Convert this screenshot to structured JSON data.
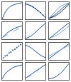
{
  "chart_data": [
    {
      "type": "line",
      "x": [
        0,
        1,
        2,
        3,
        4,
        5,
        6,
        7,
        8
      ],
      "xlim": [
        0,
        8
      ],
      "ylim": [
        0,
        10
      ],
      "tick_labels": false,
      "grid": false,
      "series": [
        {
          "color": "#1f4e9c",
          "values": [
            0,
            3.5,
            5.8,
            7.2,
            8.1,
            8.7,
            9.1,
            9.4,
            9.6
          ]
        }
      ]
    },
    {
      "type": "line",
      "x": [
        0,
        1,
        2,
        3,
        4,
        5,
        6,
        7,
        8
      ],
      "xlim": [
        0,
        8
      ],
      "ylim": [
        0,
        10
      ],
      "tick_labels": false,
      "grid": false,
      "series": [
        {
          "color": "#1f4e9c",
          "marker": "circle",
          "values": [
            9,
            8.6,
            8.0,
            7.2,
            6.2,
            5.0,
            3.8,
            2.4,
            1.0
          ]
        }
      ]
    },
    {
      "type": "line",
      "x": [
        0,
        1,
        2,
        3,
        4,
        5,
        6,
        7,
        8
      ],
      "xlim": [
        0,
        8
      ],
      "ylim": [
        0,
        10
      ],
      "tick_labels": false,
      "grid": false,
      "series": [
        {
          "color": "#1f4e9c",
          "values": [
            0.5,
            1.2,
            2.2,
            3.4,
            4.8,
            6.0,
            7.2,
            8.3,
            9.2
          ]
        },
        {
          "color": "#6fa8dc",
          "values": [
            0.5,
            2.0,
            3.8,
            5.4,
            6.8,
            7.8,
            8.6,
            9.1,
            9.5
          ]
        },
        {
          "color": "#0b2a5c",
          "values": [
            0.5,
            0.9,
            1.5,
            2.3,
            3.3,
            4.5,
            5.8,
            7.2,
            8.6
          ]
        }
      ]
    },
    {
      "type": "line",
      "x": [
        0,
        1,
        2,
        3,
        4,
        5,
        6,
        7,
        8
      ],
      "xlim": [
        0,
        8
      ],
      "ylim": [
        0,
        10
      ],
      "tick_labels": false,
      "grid": false,
      "series": [
        {
          "color": "#1f4e9c",
          "values": [
            1,
            2.5,
            3.8,
            4.9,
            5.8,
            6.5,
            7.1,
            7.6,
            8.0
          ]
        },
        {
          "color": "#6fa8dc",
          "line_style": "dashed",
          "values": [
            1,
            1.8,
            2.7,
            3.6,
            4.5,
            5.3,
            6.1,
            6.8,
            7.5
          ]
        }
      ]
    },
    {
      "type": "line",
      "x": [
        0,
        1,
        2,
        3,
        4,
        5,
        6,
        7,
        8
      ],
      "xlim": [
        0,
        8
      ],
      "ylim": [
        0,
        10
      ],
      "tick_labels": false,
      "grid": false,
      "series": [
        {
          "color": "#1f4e9c",
          "values": [
            0.5,
            1.0,
            1.8,
            2.9,
            4.2,
            5.6,
            7.0,
            8.3,
            9.5
          ]
        }
      ]
    },
    {
      "type": "line",
      "x": [
        0,
        1,
        2,
        3,
        4,
        5,
        6,
        7,
        8
      ],
      "xlim": [
        0,
        8
      ],
      "ylim": [
        0,
        10
      ],
      "tick_labels": false,
      "grid": false,
      "series": [
        {
          "color": "#1f4e9c",
          "values": [
            0.3,
            1.4,
            2.6,
            3.8,
            5.0,
            6.2,
            7.4,
            8.6,
            9.7
          ]
        },
        {
          "color": "#6fa8dc",
          "values": [
            0.3,
            0.9,
            1.6,
            2.4,
            3.3,
            4.3,
            5.4,
            6.6,
            7.9
          ]
        }
      ]
    },
    {
      "type": "scatter",
      "x": [
        0.5,
        1.2,
        2,
        2.8,
        3.5,
        4.3,
        5.1,
        5.9,
        6.6,
        7.4
      ],
      "xlim": [
        0,
        8
      ],
      "ylim": [
        0,
        10
      ],
      "tick_labels": false,
      "grid": false,
      "series": [
        {
          "color": "#1f4e9c",
          "values": [
            1.0,
            2.2,
            2.6,
            3.9,
            4.4,
            5.6,
            6.1,
            7.0,
            7.9,
            8.8
          ]
        }
      ]
    },
    {
      "type": "line",
      "x": [
        0,
        1,
        2,
        3,
        4,
        5,
        6,
        7,
        8
      ],
      "xlim": [
        0,
        8
      ],
      "ylim": [
        0,
        10
      ],
      "tick_labels": false,
      "grid": false,
      "series": [
        {
          "color": "#1f4e9c",
          "values": [
            8.5,
            8.0,
            7.2,
            6.0,
            4.8,
            3.6,
            2.6,
            1.8,
            1.2
          ]
        }
      ]
    },
    {
      "type": "line",
      "x": [
        0,
        1,
        2,
        3,
        4,
        5,
        6,
        7,
        8
      ],
      "xlim": [
        0,
        8
      ],
      "ylim": [
        0,
        10
      ],
      "tick_labels": false,
      "grid": false,
      "series": [
        {
          "color": "#1f4e9c",
          "values": [
            0.5,
            1.6,
            2.7,
            3.8,
            4.9,
            6.0,
            7.1,
            8.2,
            9.3
          ]
        },
        {
          "color": "#6fa8dc",
          "values": [
            2.0,
            2.8,
            3.6,
            4.4,
            5.2,
            6.0,
            6.8,
            7.6,
            8.4
          ]
        }
      ]
    },
    {
      "type": "line",
      "x": [
        0,
        1,
        2,
        3,
        4,
        5,
        6,
        7,
        8
      ],
      "xlim": [
        0,
        8
      ],
      "ylim": [
        0,
        10
      ],
      "tick_labels": false,
      "grid": false,
      "series": [
        {
          "color": "#1f4e9c",
          "values": [
            0.5,
            3.0,
            4.8,
            6.0,
            6.9,
            7.6,
            8.1,
            8.5,
            8.8
          ]
        }
      ]
    },
    {
      "type": "line",
      "x": [
        0,
        1,
        2,
        3,
        4,
        5,
        6,
        7,
        8
      ],
      "xlim": [
        0,
        8
      ],
      "ylim": [
        0,
        10
      ],
      "tick_labels": false,
      "grid": false,
      "series": [
        {
          "color": "#1f4e9c",
          "values": [
            1.0,
            2.0,
            3.0,
            4.0,
            5.0,
            6.0,
            7.0,
            8.0,
            9.0
          ]
        },
        {
          "color": "#6fa8dc",
          "line_style": "dashed",
          "values": [
            1.0,
            1.6,
            2.4,
            3.4,
            4.6,
            5.8,
            6.9,
            7.9,
            8.8
          ]
        }
      ]
    },
    {
      "type": "line",
      "x": [
        0,
        1,
        2,
        3,
        4,
        5,
        6,
        7,
        8
      ],
      "xlim": [
        0,
        8
      ],
      "ylim": [
        0,
        10
      ],
      "tick_labels": false,
      "grid": false,
      "series": [
        {
          "color": "#1f4e9c",
          "values": [
            0.5,
            0.8,
            1.3,
            2.0,
            3.0,
            4.3,
            5.9,
            7.6,
            9.5
          ]
        }
      ]
    }
  ]
}
